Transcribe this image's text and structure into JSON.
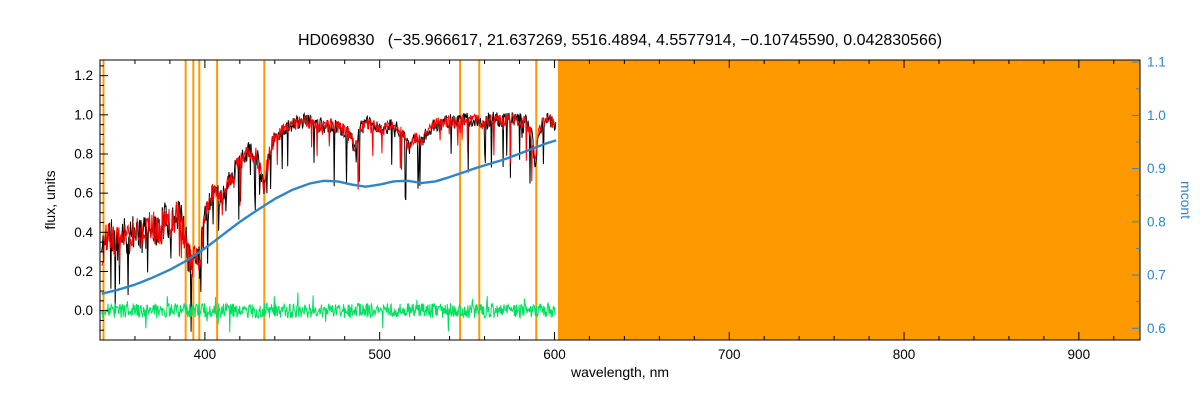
{
  "chart_data": {
    "type": "line",
    "title": "HD069830   (−35.966617, 21.637269, 5516.4894, 4.5577914, −0.10745590, 0.042830566)",
    "xlabel": "wavelength, nm",
    "ylabel_left": "flux, units",
    "ylabel_right": "mcont",
    "xlim": [
      340,
      935
    ],
    "ylim_left": [
      -0.15,
      1.28
    ],
    "ylim_right": [
      0.578,
      1.104
    ],
    "x_major_ticks": [
      400,
      500,
      600,
      700,
      800,
      900
    ],
    "x_minor_step": 20,
    "y_left_major_ticks": [
      0.0,
      0.2,
      0.4,
      0.6,
      0.8,
      1.0,
      1.2
    ],
    "y_left_minor_step": 0.05,
    "y_right_major_ticks": [
      0.6,
      0.7,
      0.8,
      0.9,
      1.0,
      1.1
    ],
    "y_right_minor_step": 0.05,
    "grid": false,
    "legend": "none",
    "colors": {
      "spectrum_black": "#000000",
      "spectrum_red": "#ff0000",
      "mcont_blue": "#2e86c8",
      "residual_green": "#00e060",
      "orange": "#ff9900",
      "frame": "#000000"
    },
    "shaded_region": {
      "x_start": 602,
      "x_end": 935,
      "color_key": "orange"
    },
    "vlines": [
      342,
      389,
      393.4,
      396.8,
      407,
      434,
      546,
      557,
      589.6
    ],
    "vline_color_key": "orange",
    "spectrum_envelope": [
      [
        341,
        0.3
      ],
      [
        345,
        0.4
      ],
      [
        349,
        0.34
      ],
      [
        353,
        0.42
      ],
      [
        357,
        0.36
      ],
      [
        361,
        0.42
      ],
      [
        365,
        0.38
      ],
      [
        369,
        0.45
      ],
      [
        373,
        0.4
      ],
      [
        377,
        0.46
      ],
      [
        381,
        0.44
      ],
      [
        385,
        0.52
      ],
      [
        388,
        0.4
      ],
      [
        391,
        0.26
      ],
      [
        393,
        0.22
      ],
      [
        395,
        0.32
      ],
      [
        397,
        0.24
      ],
      [
        400,
        0.48
      ],
      [
        403,
        0.58
      ],
      [
        406,
        0.62
      ],
      [
        409,
        0.56
      ],
      [
        412,
        0.63
      ],
      [
        415,
        0.68
      ],
      [
        418,
        0.73
      ],
      [
        422,
        0.78
      ],
      [
        426,
        0.82
      ],
      [
        430,
        0.78
      ],
      [
        434,
        0.64
      ],
      [
        437,
        0.82
      ],
      [
        440,
        0.88
      ],
      [
        444,
        0.92
      ],
      [
        448,
        0.94
      ],
      [
        453,
        0.96
      ],
      [
        458,
        0.97
      ],
      [
        463,
        0.96
      ],
      [
        468,
        0.94
      ],
      [
        473,
        0.95
      ],
      [
        478,
        0.93
      ],
      [
        483,
        0.9
      ],
      [
        486,
        0.82
      ],
      [
        489,
        0.93
      ],
      [
        493,
        0.96
      ],
      [
        497,
        0.94
      ],
      [
        501,
        0.92
      ],
      [
        505,
        0.94
      ],
      [
        509,
        0.95
      ],
      [
        513,
        0.9
      ],
      [
        517,
        0.82
      ],
      [
        520,
        0.88
      ],
      [
        524,
        0.86
      ],
      [
        528,
        0.92
      ],
      [
        532,
        0.95
      ],
      [
        536,
        0.96
      ],
      [
        540,
        0.97
      ],
      [
        545,
        0.96
      ],
      [
        550,
        0.98
      ],
      [
        555,
        0.97
      ],
      [
        560,
        0.96
      ],
      [
        565,
        0.98
      ],
      [
        570,
        0.97
      ],
      [
        575,
        0.98
      ],
      [
        580,
        0.97
      ],
      [
        584,
        0.96
      ],
      [
        587,
        0.9
      ],
      [
        589,
        0.74
      ],
      [
        591,
        0.92
      ],
      [
        594,
        0.97
      ],
      [
        597,
        0.98
      ],
      [
        601,
        0.94
      ]
    ],
    "series": [
      {
        "name": "observed-spectrum",
        "color_key": "spectrum_black",
        "axis": "left",
        "width": 1,
        "seed": 11,
        "step": 0.35,
        "noise_amp": 0.038,
        "amp_zones": [
          [
            400,
            0.095
          ],
          [
            440,
            0.055
          ],
          [
            10000,
            0.038
          ]
        ],
        "spike_prob": 0.08,
        "spike_depth": 0.3,
        "points_key": "spectrum_envelope"
      },
      {
        "name": "fitted-spectrum",
        "color_key": "spectrum_red",
        "axis": "left",
        "width": 1,
        "seed": 53,
        "step": 0.35,
        "noise_amp": 0.032,
        "amp_zones": [
          [
            400,
            0.08
          ],
          [
            440,
            0.048
          ],
          [
            10000,
            0.032
          ]
        ],
        "spike_prob": 0.06,
        "spike_depth": 0.24,
        "points_key": "spectrum_envelope"
      },
      {
        "name": "residual",
        "color_key": "residual_green",
        "axis": "left",
        "width": 1,
        "seed": 99,
        "step": 0.3,
        "noise_amp": 0.038,
        "spike_prob": 0.04,
        "spike_depth": 0.09,
        "spike_bipolar": true,
        "points": [
          [
            341,
            0.0
          ],
          [
            601,
            0.0
          ]
        ]
      },
      {
        "name": "mcont-continuum",
        "color_key": "mcont_blue",
        "axis": "right",
        "width": 2.4,
        "smooth": true,
        "points": [
          [
            341,
            0.665
          ],
          [
            350,
            0.672
          ],
          [
            360,
            0.682
          ],
          [
            370,
            0.695
          ],
          [
            380,
            0.71
          ],
          [
            390,
            0.728
          ],
          [
            400,
            0.75
          ],
          [
            410,
            0.775
          ],
          [
            420,
            0.8
          ],
          [
            430,
            0.822
          ],
          [
            440,
            0.843
          ],
          [
            450,
            0.86
          ],
          [
            460,
            0.872
          ],
          [
            468,
            0.877
          ],
          [
            476,
            0.876
          ],
          [
            484,
            0.87
          ],
          [
            492,
            0.866
          ],
          [
            500,
            0.87
          ],
          [
            508,
            0.876
          ],
          [
            516,
            0.877
          ],
          [
            524,
            0.873
          ],
          [
            532,
            0.876
          ],
          [
            540,
            0.884
          ],
          [
            548,
            0.893
          ],
          [
            556,
            0.902
          ],
          [
            564,
            0.91
          ],
          [
            572,
            0.918
          ],
          [
            580,
            0.928
          ],
          [
            588,
            0.938
          ],
          [
            595,
            0.947
          ],
          [
            601,
            0.953
          ]
        ]
      }
    ]
  }
}
